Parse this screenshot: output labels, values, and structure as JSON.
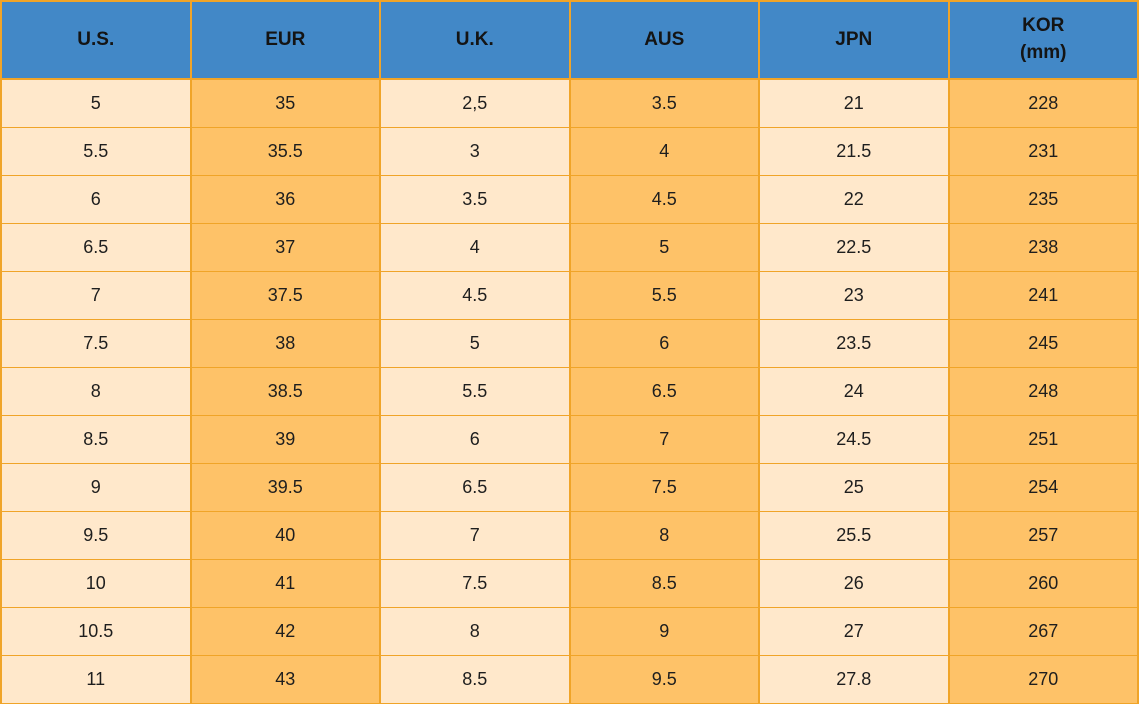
{
  "chart_data": {
    "type": "table",
    "title": "",
    "columns": [
      "U.S.",
      "EUR",
      "U.K.",
      "AUS",
      "JPN",
      "KOR\n(mm)"
    ],
    "rows": [
      [
        "5",
        "35",
        "2,5",
        "3.5",
        "21",
        "228"
      ],
      [
        "5.5",
        "35.5",
        "3",
        "4",
        "21.5",
        "231"
      ],
      [
        "6",
        "36",
        "3.5",
        "4.5",
        "22",
        "235"
      ],
      [
        "6.5",
        "37",
        "4",
        "5",
        "22.5",
        "238"
      ],
      [
        "7",
        "37.5",
        "4.5",
        "5.5",
        "23",
        "241"
      ],
      [
        "7.5",
        "38",
        "5",
        "6",
        "23.5",
        "245"
      ],
      [
        "8",
        "38.5",
        "5.5",
        "6.5",
        "24",
        "248"
      ],
      [
        "8.5",
        "39",
        "6",
        "7",
        "24.5",
        "251"
      ],
      [
        "9",
        "39.5",
        "6.5",
        "7.5",
        "25",
        "254"
      ],
      [
        "9.5",
        "40",
        "7",
        "8",
        "25.5",
        "257"
      ],
      [
        "10",
        "41",
        "7.5",
        "8.5",
        "26",
        "260"
      ],
      [
        "10.5",
        "42",
        "8",
        "9",
        "27",
        "267"
      ],
      [
        "11",
        "43",
        "8.5",
        "9.5",
        "27.8",
        "270"
      ]
    ],
    "layout": {
      "column_color_pattern": [
        "light",
        "orange",
        "light",
        "orange",
        "light",
        "orange"
      ],
      "grid": true
    }
  },
  "colors": {
    "header_bg": "#4288C7",
    "header_text": "#141414",
    "cell_text": "#1e1e1e",
    "light_cell": "#FFE8CB",
    "orange_cell": "#FEC268",
    "border": "#F0A428"
  }
}
